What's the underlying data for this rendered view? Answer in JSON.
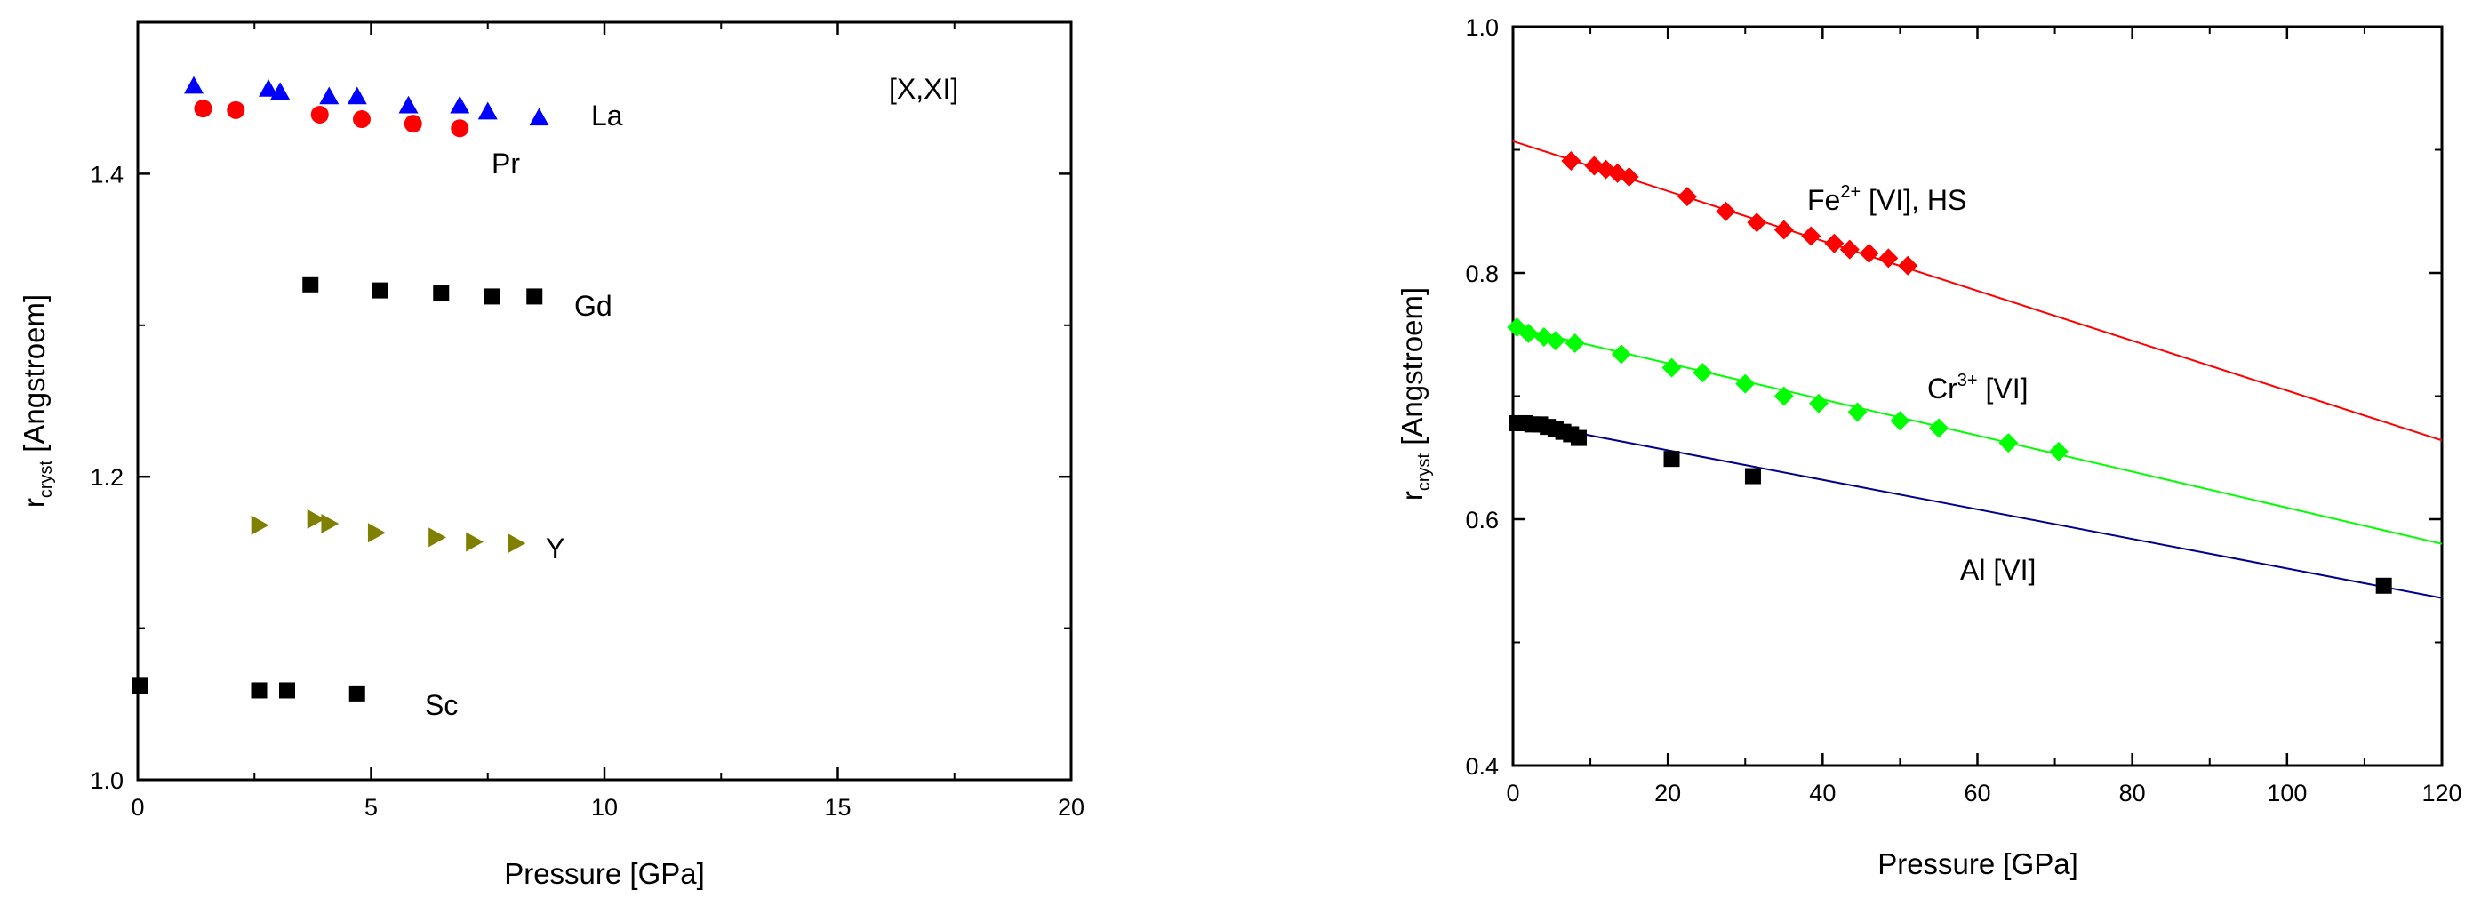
{
  "chart_data": [
    {
      "type": "scatter",
      "title": "",
      "annotation": "[X,XI]",
      "xlabel": "Pressure [GPa]",
      "ylabel": "r",
      "ylabel_sub": "cryst",
      "ylabel_rest": " [Angstroem]",
      "xlim": [
        0,
        20
      ],
      "ylim": [
        1.0,
        1.5
      ],
      "xticks": [
        0,
        5,
        10,
        15,
        20
      ],
      "yticks": [
        1.0,
        1.2,
        1.4
      ],
      "ytick_labels": [
        "1.0",
        "1.2",
        "1.4"
      ],
      "grid": false,
      "series": [
        {
          "name": "La",
          "marker": "triangle-up",
          "color": "#0000ff",
          "x": [
            1.2,
            2.8,
            3.05,
            4.1,
            4.7,
            5.8,
            6.9,
            7.5,
            8.6
          ],
          "y": [
            1.458,
            1.456,
            1.454,
            1.451,
            1.451,
            1.445,
            1.445,
            1.441,
            1.437
          ]
        },
        {
          "name": "Pr",
          "marker": "circle",
          "color": "#ff0000",
          "x": [
            1.4,
            2.1,
            3.9,
            4.8,
            5.9,
            6.9
          ],
          "y": [
            1.443,
            1.442,
            1.439,
            1.436,
            1.433,
            1.43
          ]
        },
        {
          "name": "Gd",
          "marker": "square",
          "color": "#000000",
          "x": [
            3.7,
            5.2,
            6.5,
            7.6,
            8.5
          ],
          "y": [
            1.327,
            1.323,
            1.321,
            1.319,
            1.319
          ]
        },
        {
          "name": "Y",
          "marker": "triangle-right",
          "color": "#808000",
          "x": [
            2.6,
            3.8,
            4.1,
            5.1,
            6.4,
            7.2,
            8.1
          ],
          "y": [
            1.168,
            1.172,
            1.169,
            1.163,
            1.16,
            1.157,
            1.156
          ]
        },
        {
          "name": "Sc",
          "marker": "square",
          "color": "#000000",
          "x": [
            0.05,
            2.6,
            3.2,
            4.7
          ],
          "y": [
            1.062,
            1.059,
            1.059,
            1.057
          ]
        }
      ]
    },
    {
      "type": "scatter",
      "title": "",
      "xlabel": "Pressure [GPa]",
      "ylabel": "r",
      "ylabel_sub": "cryst",
      "ylabel_rest": " [Angstroem]",
      "xlim": [
        0,
        120
      ],
      "ylim": [
        0.4,
        1.0
      ],
      "xticks": [
        0,
        20,
        40,
        60,
        80,
        100,
        120
      ],
      "yticks": [
        0.4,
        0.6,
        0.8,
        1.0
      ],
      "ytick_labels": [
        "0.4",
        "0.6",
        "0.8",
        "1.0"
      ],
      "grid": false,
      "series": [
        {
          "name": "Fe",
          "name_sup": "2+",
          "name_rest": " [VI], HS",
          "marker": "diamond",
          "color": "#ff0000",
          "line_color": "#ff0000",
          "fit": [
            [
              0,
              0.907
            ],
            [
              120,
              0.664
            ]
          ],
          "x": [
            7.5,
            10.5,
            12,
            13.5,
            15,
            22.5,
            27.5,
            31.5,
            35,
            38.5,
            41.5,
            43.5,
            46,
            48.5,
            51
          ],
          "y": [
            0.891,
            0.887,
            0.884,
            0.881,
            0.878,
            0.862,
            0.85,
            0.841,
            0.835,
            0.83,
            0.824,
            0.819,
            0.816,
            0.812,
            0.806
          ]
        },
        {
          "name": "Cr",
          "name_sup": "3+",
          "name_rest": " [VI]",
          "marker": "diamond",
          "color": "#00ff00",
          "line_color": "#00ff00",
          "fit": [
            [
              0,
              0.756
            ],
            [
              120,
              0.58
            ]
          ],
          "x": [
            0.5,
            2,
            4,
            5.5,
            8,
            14,
            20.5,
            24.5,
            30,
            35,
            39.5,
            44.5,
            50,
            55,
            64,
            70.5
          ],
          "y": [
            0.756,
            0.751,
            0.748,
            0.745,
            0.743,
            0.734,
            0.723,
            0.719,
            0.71,
            0.7,
            0.694,
            0.687,
            0.68,
            0.674,
            0.662,
            0.655
          ]
        },
        {
          "name": "Al [VI]",
          "marker": "square",
          "color": "#000000",
          "line_color": "#00008b",
          "fit": [
            [
              0,
              0.68
            ],
            [
              120,
              0.536
            ]
          ],
          "x": [
            0.5,
            1.5,
            2.5,
            3.5,
            4.5,
            5.5,
            6.5,
            7.5,
            8.5,
            20.5,
            31,
            112.5
          ],
          "y": [
            0.678,
            0.678,
            0.677,
            0.677,
            0.675,
            0.673,
            0.671,
            0.669,
            0.666,
            0.649,
            0.635,
            0.546
          ]
        }
      ]
    }
  ]
}
